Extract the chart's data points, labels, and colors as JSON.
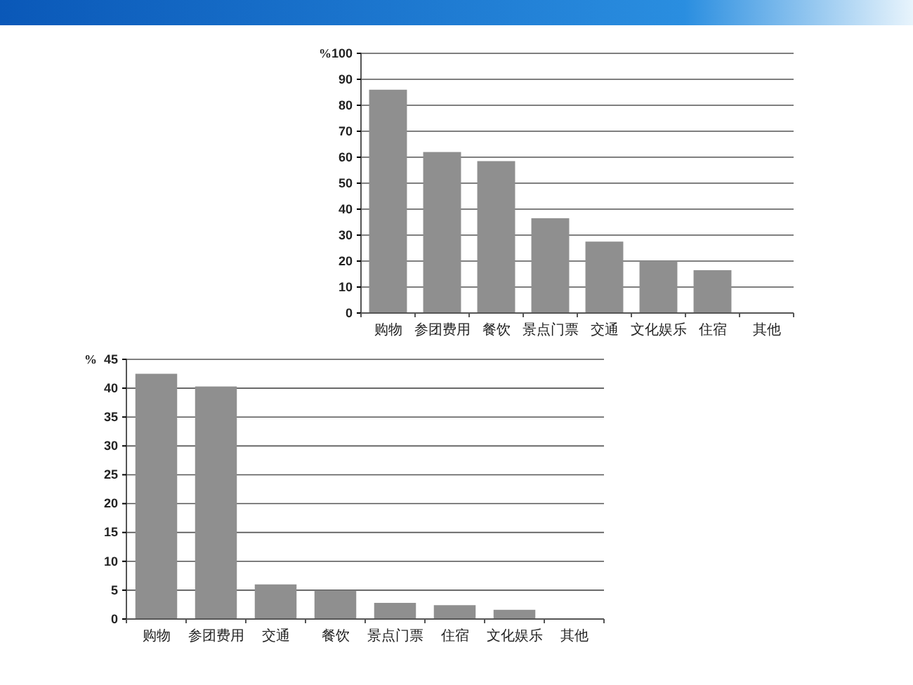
{
  "chart_data": [
    {
      "type": "bar",
      "ylabel": "%",
      "categories": [
        "购物",
        "参团费用",
        "餐饮",
        "景点门票",
        "交通",
        "文化娱乐",
        "住宿",
        "其他"
      ],
      "values": [
        86,
        62,
        58.5,
        36.5,
        27.5,
        20,
        16.5,
        0
      ],
      "color": "#8f8f8f",
      "ylim": [
        0,
        100
      ],
      "yticks": [
        0,
        10,
        20,
        30,
        40,
        50,
        60,
        70,
        80,
        90,
        100
      ],
      "grid": "y"
    },
    {
      "type": "bar",
      "ylabel": "%",
      "categories": [
        "购物",
        "参团费用",
        "交通",
        "餐饮",
        "景点门票",
        "住宿",
        "文化娱乐",
        "其他"
      ],
      "values": [
        42.5,
        40.3,
        6,
        4.9,
        2.8,
        2.4,
        1.6,
        0
      ],
      "color": "#8f8f8f",
      "ylim": [
        0,
        45
      ],
      "yticks": [
        0,
        5,
        10,
        15,
        20,
        25,
        30,
        35,
        40,
        45
      ],
      "grid": "y"
    }
  ]
}
